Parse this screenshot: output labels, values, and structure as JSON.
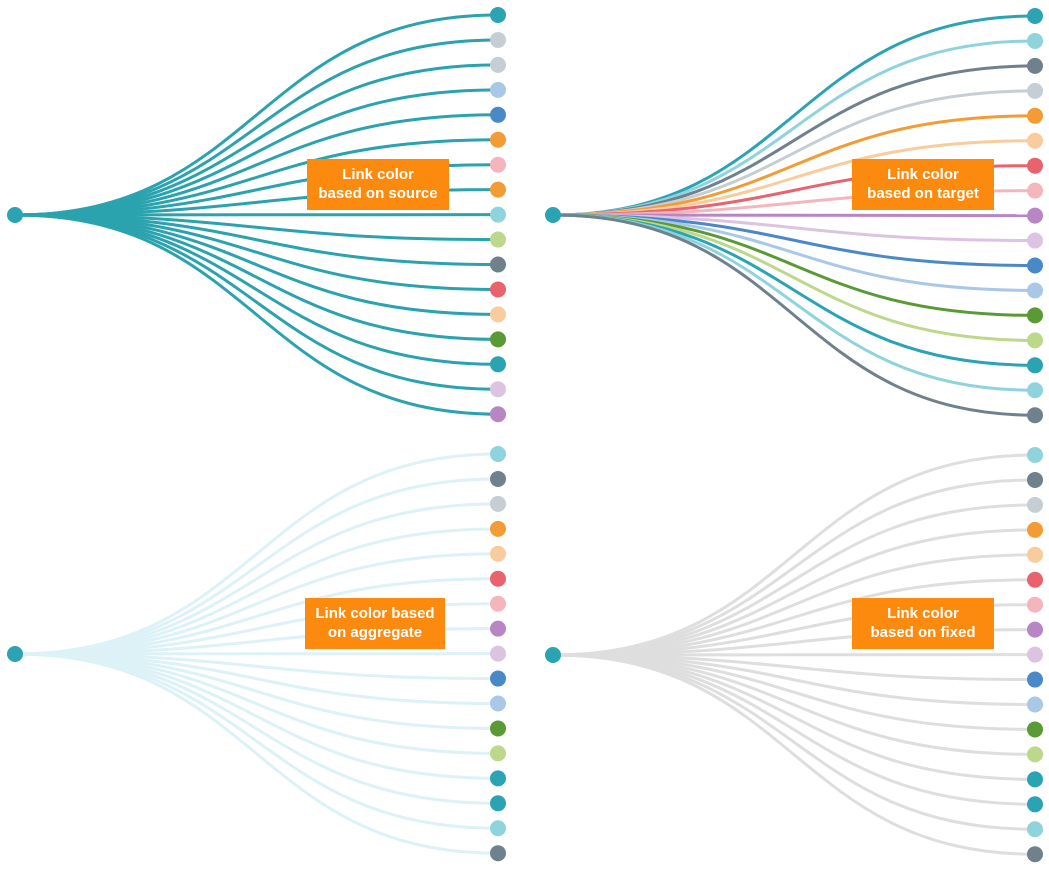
{
  "panels": [
    {
      "label": [
        "Link color",
        "based on source"
      ],
      "sourceColor": "#2aa3b3",
      "linkColor": "#2aa3ae",
      "nodeColors": [
        "#2aa3b3",
        "#c5ced4",
        "#c5ced4",
        "#a9c8e8",
        "#4a89c8",
        "#f39c36",
        "#f4b6bc",
        "#f39c36",
        "#8fd3dc",
        "#bcd88a",
        "#6f818d",
        "#e8636e",
        "#f8cc9c",
        "#5a9a35",
        "#2aa3b3",
        "#dcc3e2",
        "#b886c4"
      ]
    },
    {
      "label": [
        "Link color",
        "based on target"
      ],
      "sourceColor": "#2aa3b3",
      "linkColor": "target",
      "nodeColors": [
        "#2aa3b3",
        "#8fd3dc",
        "#6f818d",
        "#c5ced4",
        "#f39c36",
        "#f8cc9c",
        "#e8636e",
        "#f4b6bc",
        "#b886c4",
        "#dcc3e2",
        "#4a89c8",
        "#a9c8e8",
        "#5a9a35",
        "#bcd88a",
        "#2aa3b3",
        "#8fd3dc",
        "#6f818d"
      ]
    },
    {
      "label": [
        "Link color based",
        "on aggregate"
      ],
      "sourceColor": "#2aa3b3",
      "linkColor": "#dcf2f6",
      "nodeColors": [
        "#8fd3dc",
        "#6f818d",
        "#c5ced4",
        "#f39c36",
        "#f8cc9c",
        "#e8636e",
        "#f4b6bc",
        "#b886c4",
        "#dcc3e2",
        "#4a89c8",
        "#a9c8e8",
        "#5a9a35",
        "#bcd88a",
        "#2aa3b3",
        "#2aa3b3",
        "#8fd3dc",
        "#6f818d"
      ]
    },
    {
      "label": [
        "Link color",
        "based on fixed"
      ],
      "sourceColor": "#2aa3b3",
      "linkColor": "#dedede",
      "nodeColors": [
        "#8fd3dc",
        "#6f818d",
        "#c5ced4",
        "#f39c36",
        "#f8cc9c",
        "#e8636e",
        "#f4b6bc",
        "#b886c4",
        "#dcc3e2",
        "#4a89c8",
        "#a9c8e8",
        "#5a9a35",
        "#bcd88a",
        "#2aa3b3",
        "#2aa3b3",
        "#8fd3dc",
        "#6f818d"
      ]
    }
  ]
}
